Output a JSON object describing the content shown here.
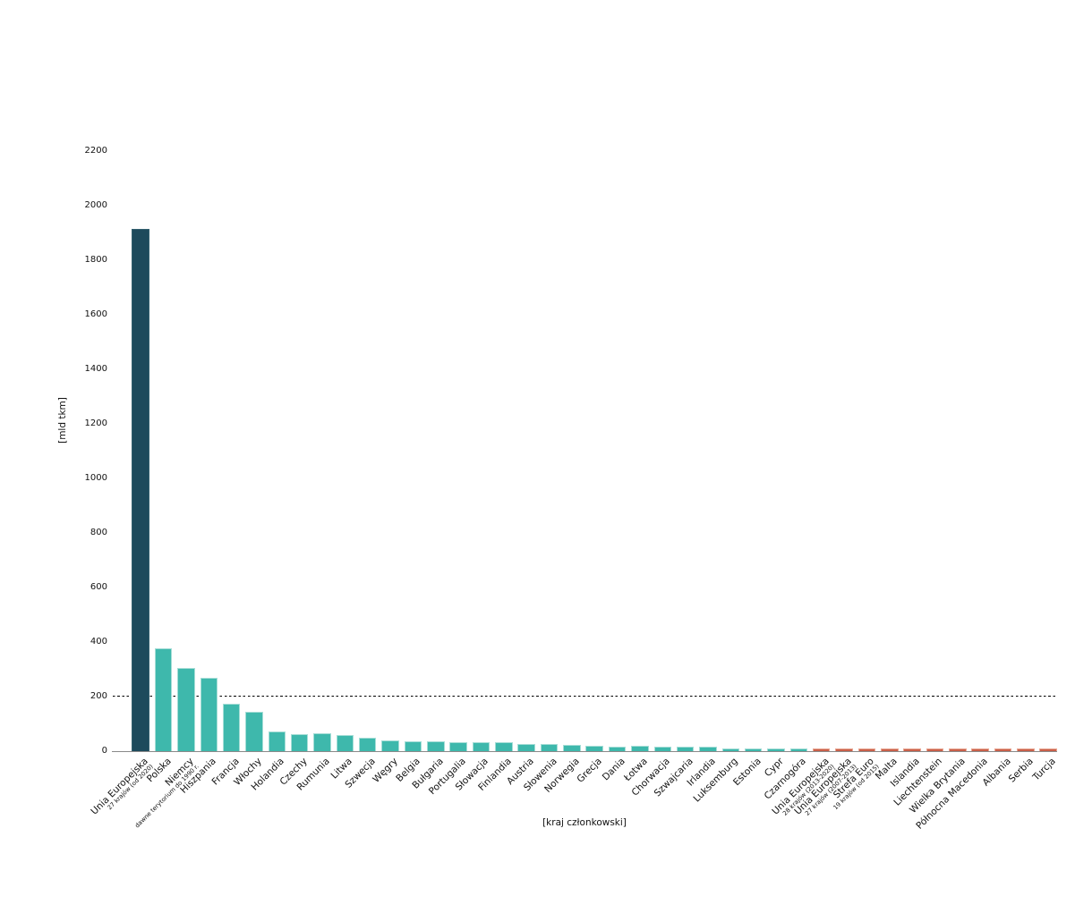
{
  "chart_data": {
    "type": "bar",
    "title": "",
    "xlabel": "[kraj członkowski]",
    "ylabel": "[mld tkm]",
    "unit": "mld tkm",
    "ylim": [
      0,
      2300
    ],
    "yticks": [
      0,
      200,
      400,
      600,
      800,
      1000,
      1200,
      1400,
      1600,
      1800,
      2000,
      2200
    ],
    "grid": false,
    "legend_position": "none",
    "reference_line": {
      "value": 200,
      "style": "dashed",
      "color": "#000000"
    },
    "groups": {
      "eu_current": {
        "fill": "#1d4a5c",
        "edge": "#33606f"
      },
      "country": {
        "fill": "#3eb8ac",
        "edge": "#a5ddd6"
      },
      "other": {
        "fill": "#c96049",
        "edge": "#e9a692"
      }
    },
    "bars": [
      {
        "label": "Unia Europejska",
        "sublabel": "27 krajów (od 2020)",
        "value": 1915,
        "group": "eu_current"
      },
      {
        "label": "Polska",
        "sublabel": "",
        "value": 377,
        "group": "country"
      },
      {
        "label": "Niemcy",
        "sublabel": "dawne terytorium do 1990 r.",
        "value": 302,
        "group": "country"
      },
      {
        "label": "Hiszpania",
        "sublabel": "",
        "value": 268,
        "group": "country"
      },
      {
        "label": "Francja",
        "sublabel": "",
        "value": 172,
        "group": "country"
      },
      {
        "label": "Włochy",
        "sublabel": "",
        "value": 144,
        "group": "country"
      },
      {
        "label": "Holandia",
        "sublabel": "",
        "value": 71,
        "group": "country"
      },
      {
        "label": "Czechy",
        "sublabel": "",
        "value": 60,
        "group": "country"
      },
      {
        "label": "Rumunia",
        "sublabel": "",
        "value": 64,
        "group": "country"
      },
      {
        "label": "Litwa",
        "sublabel": "",
        "value": 57,
        "group": "country"
      },
      {
        "label": "Szwecja",
        "sublabel": "",
        "value": 48,
        "group": "country"
      },
      {
        "label": "Węgry",
        "sublabel": "",
        "value": 38,
        "group": "country"
      },
      {
        "label": "Belgia",
        "sublabel": "",
        "value": 34,
        "group": "country"
      },
      {
        "label": "Bułgaria",
        "sublabel": "",
        "value": 36,
        "group": "country"
      },
      {
        "label": "Portugalia",
        "sublabel": "",
        "value": 32,
        "group": "country"
      },
      {
        "label": "Słowacja",
        "sublabel": "",
        "value": 30,
        "group": "country"
      },
      {
        "label": "Finlandia",
        "sublabel": "",
        "value": 30,
        "group": "country"
      },
      {
        "label": "Austria",
        "sublabel": "",
        "value": 26,
        "group": "country"
      },
      {
        "label": "Słowenia",
        "sublabel": "",
        "value": 25,
        "group": "country"
      },
      {
        "label": "Norwegia",
        "sublabel": "",
        "value": 22,
        "group": "country"
      },
      {
        "label": "Grecja",
        "sublabel": "",
        "value": 20,
        "group": "country"
      },
      {
        "label": "Dania",
        "sublabel": "",
        "value": 16,
        "group": "country"
      },
      {
        "label": "Łotwa",
        "sublabel": "",
        "value": 18,
        "group": "country"
      },
      {
        "label": "Chorwacja",
        "sublabel": "",
        "value": 15,
        "group": "country"
      },
      {
        "label": "Szwajcaria",
        "sublabel": "",
        "value": 14,
        "group": "country"
      },
      {
        "label": "Irlandia",
        "sublabel": "",
        "value": 16,
        "group": "country"
      },
      {
        "label": "Luksemburg",
        "sublabel": "",
        "value": 9,
        "group": "country"
      },
      {
        "label": "Estonia",
        "sublabel": "",
        "value": 10,
        "group": "country"
      },
      {
        "label": "Cypr",
        "sublabel": "",
        "value": 9,
        "group": "country"
      },
      {
        "label": "Czarnogóra",
        "sublabel": "",
        "value": 7,
        "group": "country"
      },
      {
        "label": "Unia Europejska",
        "sublabel": "28 krajów (2013-2020)",
        "value": 8,
        "group": "other"
      },
      {
        "label": "Unia Europejska",
        "sublabel": "27 krajów (2007-2013)",
        "value": 8,
        "group": "other"
      },
      {
        "label": "Strefa Euro",
        "sublabel": "19 krajów (od 2015)",
        "value": 8,
        "group": "other"
      },
      {
        "label": "Malta",
        "sublabel": "",
        "value": 8,
        "group": "other"
      },
      {
        "label": "Islandia",
        "sublabel": "",
        "value": 8,
        "group": "other"
      },
      {
        "label": "Liechtenstein",
        "sublabel": "",
        "value": 8,
        "group": "other"
      },
      {
        "label": "Wielka Brytania",
        "sublabel": "",
        "value": 8,
        "group": "other"
      },
      {
        "label": "Północna Macedonia",
        "sublabel": "",
        "value": 8,
        "group": "other"
      },
      {
        "label": "Albania",
        "sublabel": "",
        "value": 8,
        "group": "other"
      },
      {
        "label": "Serbia",
        "sublabel": "",
        "value": 8,
        "group": "other"
      },
      {
        "label": "Turcja",
        "sublabel": "",
        "value": 8,
        "group": "other"
      }
    ]
  }
}
